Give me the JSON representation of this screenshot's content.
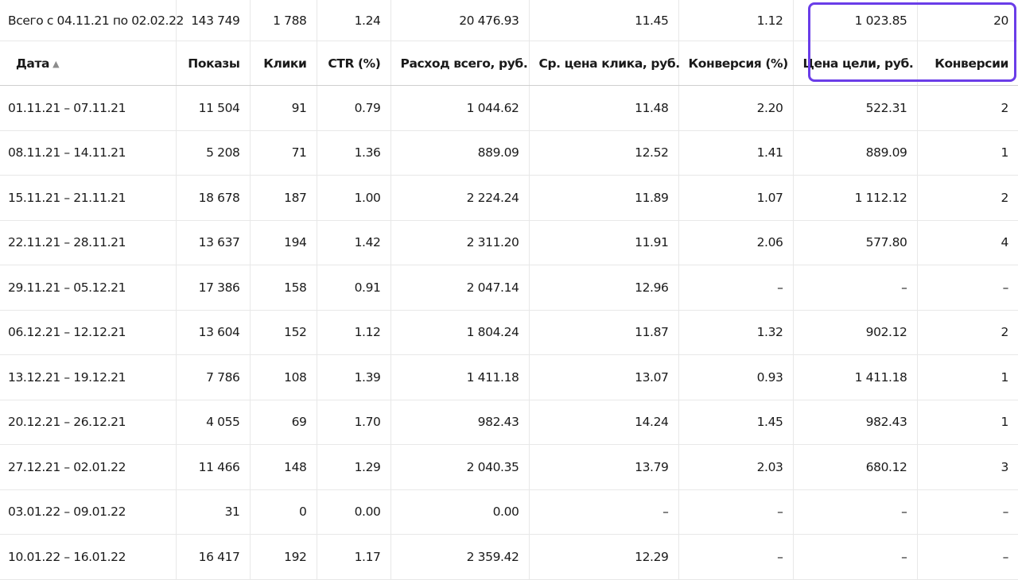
{
  "total": {
    "label": "Всего с 04.11.21 по 02.02.22",
    "shows": "143 749",
    "clicks": "1 788",
    "ctr": "1.24",
    "spend": "20 476.93",
    "cpc": "11.45",
    "conv_rate": "1.12",
    "goal_cost": "1 023.85",
    "conversions": "20"
  },
  "headers": {
    "date": "Дата",
    "sort_arrow": "▲",
    "shows": "Показы",
    "clicks": "Клики",
    "ctr": "CTR (%)",
    "spend": "Расход всего, руб.",
    "cpc": "Ср. цена клика, руб.",
    "conv_rate": "Конверсия (%)",
    "goal_cost": "Цена цели, руб.",
    "conversions": "Конверсии"
  },
  "rows": [
    {
      "date": "01.11.21 – 07.11.21",
      "shows": "11 504",
      "clicks": "91",
      "ctr": "0.79",
      "spend": "1 044.62",
      "cpc": "11.48",
      "conv_rate": "2.20",
      "goal_cost": "522.31",
      "conversions": "2"
    },
    {
      "date": "08.11.21 – 14.11.21",
      "shows": "5 208",
      "clicks": "71",
      "ctr": "1.36",
      "spend": "889.09",
      "cpc": "12.52",
      "conv_rate": "1.41",
      "goal_cost": "889.09",
      "conversions": "1"
    },
    {
      "date": "15.11.21 – 21.11.21",
      "shows": "18 678",
      "clicks": "187",
      "ctr": "1.00",
      "spend": "2 224.24",
      "cpc": "11.89",
      "conv_rate": "1.07",
      "goal_cost": "1 112.12",
      "conversions": "2"
    },
    {
      "date": "22.11.21 – 28.11.21",
      "shows": "13 637",
      "clicks": "194",
      "ctr": "1.42",
      "spend": "2 311.20",
      "cpc": "11.91",
      "conv_rate": "2.06",
      "goal_cost": "577.80",
      "conversions": "4"
    },
    {
      "date": "29.11.21 – 05.12.21",
      "shows": "17 386",
      "clicks": "158",
      "ctr": "0.91",
      "spend": "2 047.14",
      "cpc": "12.96",
      "conv_rate": "–",
      "goal_cost": "–",
      "conversions": "–"
    },
    {
      "date": "06.12.21 – 12.12.21",
      "shows": "13 604",
      "clicks": "152",
      "ctr": "1.12",
      "spend": "1 804.24",
      "cpc": "11.87",
      "conv_rate": "1.32",
      "goal_cost": "902.12",
      "conversions": "2"
    },
    {
      "date": "13.12.21 – 19.12.21",
      "shows": "7 786",
      "clicks": "108",
      "ctr": "1.39",
      "spend": "1 411.18",
      "cpc": "13.07",
      "conv_rate": "0.93",
      "goal_cost": "1 411.18",
      "conversions": "1"
    },
    {
      "date": "20.12.21 – 26.12.21",
      "shows": "4 055",
      "clicks": "69",
      "ctr": "1.70",
      "spend": "982.43",
      "cpc": "14.24",
      "conv_rate": "1.45",
      "goal_cost": "982.43",
      "conversions": "1"
    },
    {
      "date": "27.12.21 – 02.01.22",
      "shows": "11 466",
      "clicks": "148",
      "ctr": "1.29",
      "spend": "2 040.35",
      "cpc": "13.79",
      "conv_rate": "2.03",
      "goal_cost": "680.12",
      "conversions": "3"
    },
    {
      "date": "03.01.22 – 09.01.22",
      "shows": "31",
      "clicks": "0",
      "ctr": "0.00",
      "spend": "0.00",
      "cpc": "–",
      "conv_rate": "–",
      "goal_cost": "–",
      "conversions": "–"
    },
    {
      "date": "10.01.22 – 16.01.22",
      "shows": "16 417",
      "clicks": "192",
      "ctr": "1.17",
      "spend": "2 359.42",
      "cpc": "12.29",
      "conv_rate": "–",
      "goal_cost": "–",
      "conversions": "–"
    }
  ],
  "colors": {
    "highlight": "#6a3de8"
  }
}
